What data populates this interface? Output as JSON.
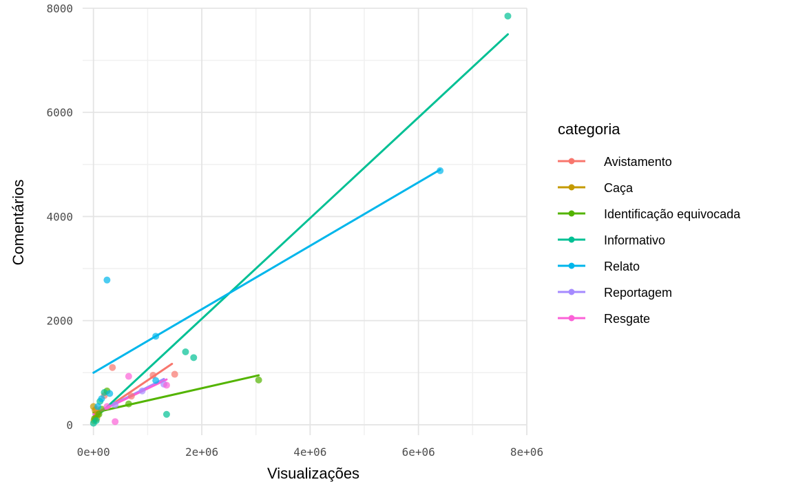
{
  "chart_data": {
    "type": "scatter",
    "xlabel": "Visualizações",
    "ylabel": "Comentários",
    "xlim": [
      -200000,
      8000000
    ],
    "ylim": [
      -200,
      8000
    ],
    "x_ticks": [
      0,
      2000000,
      4000000,
      6000000,
      8000000
    ],
    "x_tick_labels": [
      "0e+00",
      "2e+06",
      "4e+06",
      "6e+06",
      "8e+06"
    ],
    "y_ticks": [
      0,
      2000,
      4000,
      6000,
      8000
    ],
    "y_tick_labels": [
      "0",
      "2000",
      "4000",
      "6000",
      "8000"
    ],
    "grid": true,
    "legend": {
      "title": "categoria",
      "placement": "right"
    },
    "series": [
      {
        "name": "Avistamento",
        "color": "#F8766D",
        "points": [
          [
            350000,
            1100
          ],
          [
            1100000,
            950
          ],
          [
            1500000,
            970
          ],
          [
            200000,
            560
          ],
          [
            50000,
            300
          ],
          [
            700000,
            550
          ]
        ],
        "trend": [
          [
            0,
            150
          ],
          [
            1450000,
            1170
          ]
        ]
      },
      {
        "name": "Caça",
        "color": "#C49A00",
        "points": [
          [
            0,
            350
          ],
          [
            30000,
            280
          ],
          [
            60000,
            120
          ],
          [
            10000,
            80
          ],
          [
            80000,
            200
          ]
        ],
        "trend": [
          [
            0,
            130
          ],
          [
            100000,
            250
          ]
        ]
      },
      {
        "name": "Identificação equivocada",
        "color": "#53B400",
        "points": [
          [
            250000,
            650
          ],
          [
            3050000,
            860
          ],
          [
            100000,
            200
          ],
          [
            20000,
            120
          ],
          [
            150000,
            300
          ],
          [
            650000,
            400
          ]
        ],
        "trend": [
          [
            0,
            230
          ],
          [
            3050000,
            950
          ]
        ]
      },
      {
        "name": "Informativo",
        "color": "#00C094",
        "points": [
          [
            7650000,
            7850
          ],
          [
            1700000,
            1400
          ],
          [
            1850000,
            1290
          ],
          [
            1350000,
            200
          ],
          [
            50000,
            80
          ],
          [
            120000,
            450
          ],
          [
            200000,
            620
          ],
          [
            0,
            30
          ]
        ],
        "trend": [
          [
            0,
            100
          ],
          [
            7650000,
            7500
          ]
        ]
      },
      {
        "name": "Relato",
        "color": "#00B6EB",
        "points": [
          [
            250000,
            2780
          ],
          [
            1150000,
            1700
          ],
          [
            6400000,
            4880
          ],
          [
            1150000,
            850
          ],
          [
            150000,
            500
          ],
          [
            300000,
            600
          ],
          [
            80000,
            350
          ]
        ],
        "trend": [
          [
            0,
            1000
          ],
          [
            6400000,
            4900
          ]
        ]
      },
      {
        "name": "Reportagem",
        "color": "#A58AFF",
        "points": [
          [
            400000,
            380
          ],
          [
            900000,
            650
          ],
          [
            1300000,
            780
          ]
        ],
        "trend": [
          [
            0,
            200
          ],
          [
            1300000,
            880
          ]
        ]
      },
      {
        "name": "Resgate",
        "color": "#FB61D7",
        "points": [
          [
            650000,
            930
          ],
          [
            1350000,
            760
          ],
          [
            400000,
            60
          ],
          [
            250000,
            350
          ]
        ],
        "trend": [
          [
            0,
            200
          ],
          [
            1350000,
            870
          ]
        ]
      }
    ]
  }
}
